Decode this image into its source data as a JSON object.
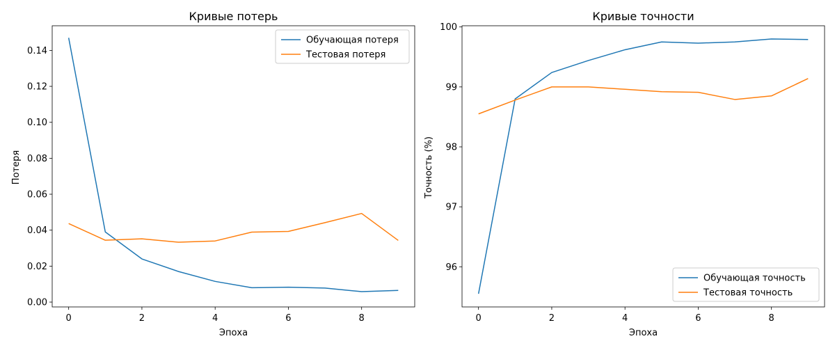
{
  "figure": {
    "background": "#ffffff"
  },
  "chart_data": [
    {
      "type": "line",
      "title": "Кривые потерь",
      "xlabel": "Эпоха",
      "ylabel": "Потеря",
      "xlim": [
        -0.45,
        9.45
      ],
      "ylim": [
        -0.0027,
        0.1537
      ],
      "xticks": [
        0,
        2,
        4,
        6,
        8
      ],
      "yticks": [
        0.0,
        0.02,
        0.04,
        0.06,
        0.08,
        0.1,
        0.12,
        0.14
      ],
      "ytick_decimals": 2,
      "grid": false,
      "legend_position": "top-right",
      "x": [
        0,
        1,
        2,
        3,
        4,
        5,
        6,
        7,
        8,
        9
      ],
      "series": [
        {
          "name": "Обучающая потеря",
          "color": "#1f77b4",
          "values": [
            0.147,
            0.039,
            0.024,
            0.017,
            0.0115,
            0.008,
            0.0083,
            0.0078,
            0.0058,
            0.0065
          ]
        },
        {
          "name": "Тестовая потеря",
          "color": "#ff7f0e",
          "values": [
            0.0437,
            0.0344,
            0.0352,
            0.0333,
            0.034,
            0.0389,
            0.0393,
            0.0442,
            0.0493,
            0.0343
          ]
        }
      ]
    },
    {
      "type": "line",
      "title": "Кривые точности",
      "xlabel": "Эпоха",
      "ylabel": "Точность (%)",
      "xlim": [
        -0.45,
        9.45
      ],
      "ylim": [
        95.33,
        100.02
      ],
      "xticks": [
        0,
        2,
        4,
        6,
        8
      ],
      "yticks": [
        96,
        97,
        98,
        99,
        100
      ],
      "ytick_decimals": 0,
      "grid": false,
      "legend_position": "bottom-right",
      "x": [
        0,
        1,
        2,
        3,
        4,
        5,
        6,
        7,
        8,
        9
      ],
      "series": [
        {
          "name": "Обучающая точность",
          "color": "#1f77b4",
          "values": [
            95.55,
            98.8,
            99.24,
            99.44,
            99.62,
            99.75,
            99.73,
            99.75,
            99.8,
            99.79
          ]
        },
        {
          "name": "Тестовая точность",
          "color": "#ff7f0e",
          "values": [
            98.55,
            98.78,
            99.0,
            99.0,
            98.96,
            98.92,
            98.91,
            98.79,
            98.85,
            99.14
          ]
        }
      ]
    }
  ]
}
